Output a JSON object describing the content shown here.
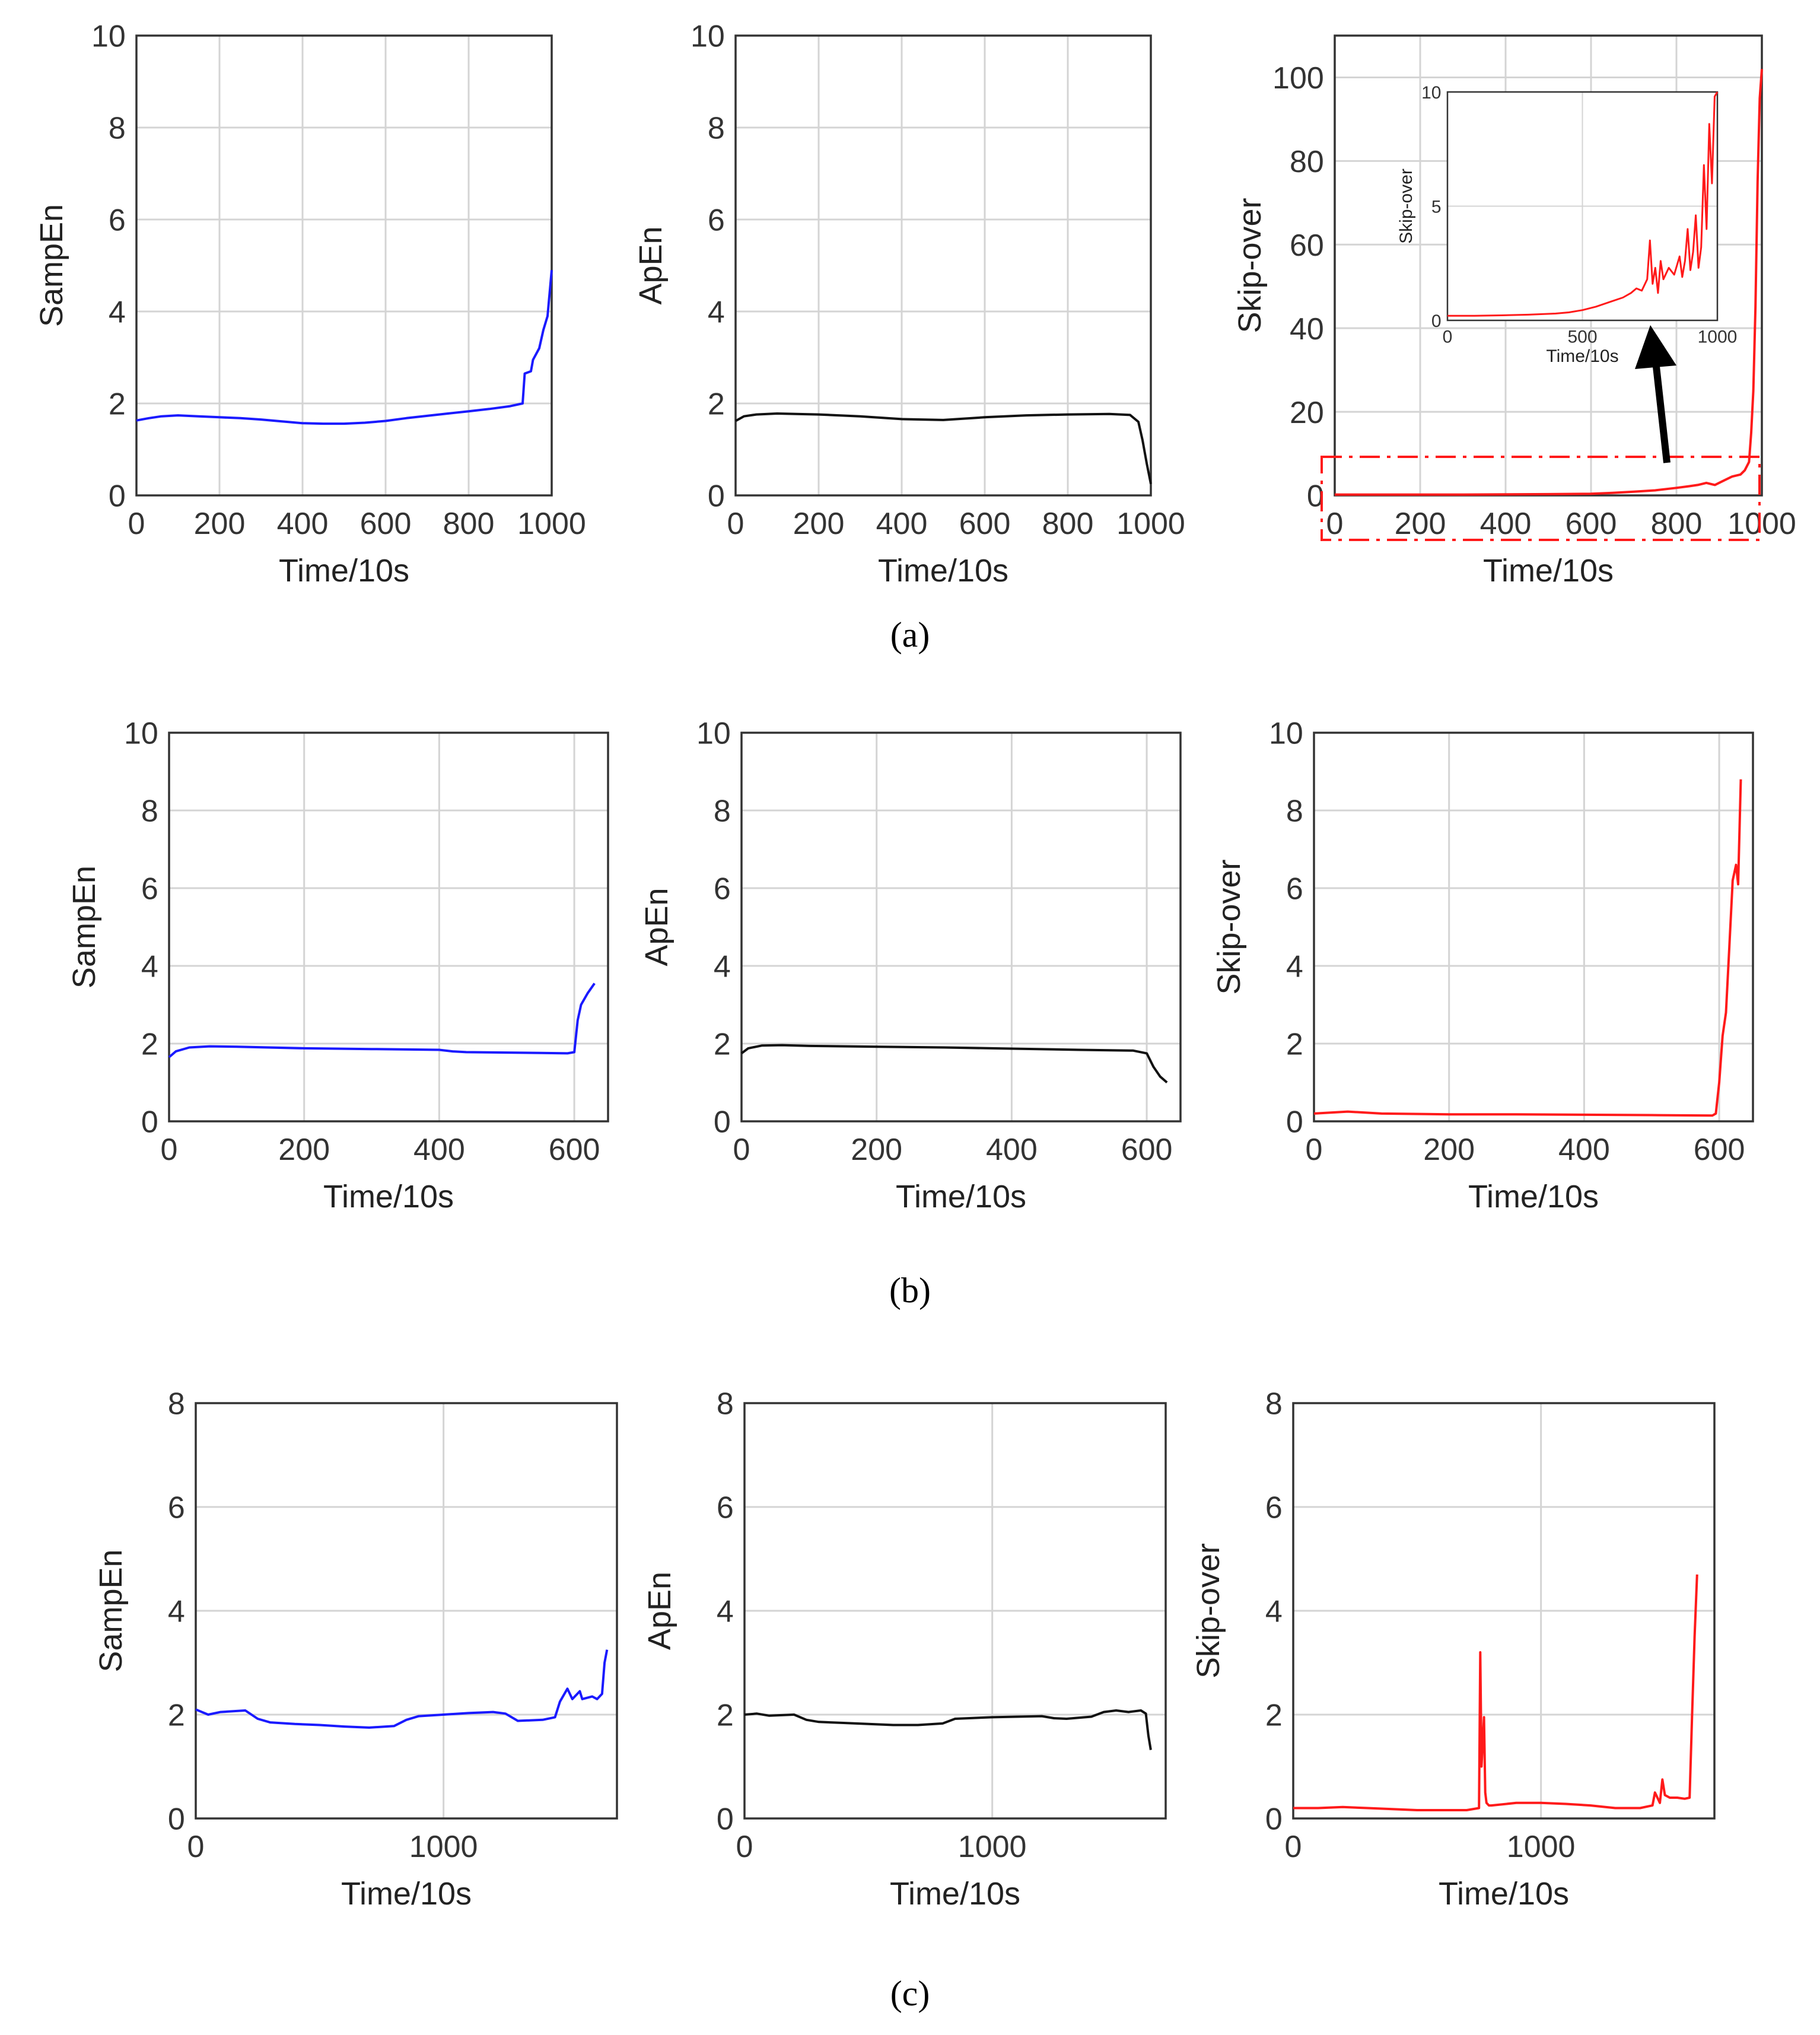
{
  "figure": {
    "panel_labels": [
      "(a)",
      "(b)",
      "(c)"
    ],
    "colors": {
      "sampen": "#1a1aff",
      "apen": "#111111",
      "skip": "#ff1a1a",
      "grid": "#d4d4d4",
      "axis": "#333333"
    }
  },
  "chart_data": [
    {
      "id": "a1",
      "type": "line",
      "title": "",
      "xlabel": "Time/10s",
      "ylabel": "SampEn",
      "xlim": [
        0,
        1000
      ],
      "ylim": [
        0,
        10
      ],
      "xticks": [
        "0",
        "200",
        "400",
        "600",
        "800",
        "1000"
      ],
      "yticks": [
        "0",
        "2",
        "4",
        "6",
        "8",
        "10"
      ],
      "series": [
        {
          "name": "SampEn",
          "color": "blue",
          "x": [
            0,
            30,
            60,
            100,
            150,
            200,
            250,
            300,
            350,
            400,
            450,
            500,
            550,
            600,
            650,
            700,
            750,
            800,
            850,
            900,
            930,
            935,
            950,
            955,
            970,
            980,
            990,
            995,
            1000
          ],
          "y": [
            1.63,
            1.68,
            1.72,
            1.74,
            1.72,
            1.7,
            1.68,
            1.65,
            1.61,
            1.57,
            1.56,
            1.56,
            1.58,
            1.62,
            1.68,
            1.73,
            1.78,
            1.83,
            1.88,
            1.94,
            2.0,
            2.65,
            2.7,
            2.95,
            3.2,
            3.6,
            3.9,
            4.4,
            4.9
          ]
        }
      ]
    },
    {
      "id": "a2",
      "type": "line",
      "title": "",
      "xlabel": "Time/10s",
      "ylabel": "ApEn",
      "xlim": [
        0,
        1000
      ],
      "ylim": [
        0,
        10
      ],
      "xticks": [
        "0",
        "200",
        "400",
        "600",
        "800",
        "1000"
      ],
      "yticks": [
        "0",
        "2",
        "4",
        "6",
        "8",
        "10"
      ],
      "series": [
        {
          "name": "ApEn",
          "color": "black",
          "x": [
            0,
            20,
            50,
            100,
            200,
            300,
            400,
            500,
            600,
            700,
            800,
            900,
            950,
            970,
            980,
            990,
            1000
          ],
          "y": [
            1.62,
            1.72,
            1.76,
            1.78,
            1.76,
            1.72,
            1.66,
            1.64,
            1.7,
            1.74,
            1.76,
            1.77,
            1.75,
            1.6,
            1.2,
            0.7,
            0.25
          ]
        }
      ]
    },
    {
      "id": "a3",
      "type": "line",
      "title": "",
      "xlabel": "Time/10s",
      "ylabel": "Skip-over",
      "xlim": [
        0,
        1000
      ],
      "ylim": [
        0,
        110
      ],
      "xticks": [
        "0",
        "200",
        "400",
        "600",
        "800",
        "1000"
      ],
      "yticks": [
        "0",
        "20",
        "40",
        "60",
        "80",
        "100"
      ],
      "series": [
        {
          "name": "Skip-over",
          "color": "red",
          "x": [
            0,
            100,
            200,
            300,
            400,
            500,
            600,
            650,
            700,
            750,
            800,
            830,
            850,
            870,
            890,
            910,
            930,
            950,
            960,
            970,
            975,
            980,
            985,
            990,
            995,
            1000
          ],
          "y": [
            0.2,
            0.2,
            0.2,
            0.2,
            0.25,
            0.3,
            0.4,
            0.6,
            0.9,
            1.2,
            1.8,
            2.2,
            2.5,
            3.0,
            2.5,
            3.5,
            4.5,
            5,
            6,
            8,
            15,
            25,
            45,
            75,
            95,
            102
          ]
        }
      ],
      "inset": {
        "xlabel": "Time/10s",
        "ylabel": "Skip-over",
        "xlim": [
          0,
          1000
        ],
        "ylim": [
          0,
          10
        ],
        "xticks": [
          "0",
          "500",
          "1000"
        ],
        "yticks": [
          "0",
          "5",
          "10"
        ],
        "x": [
          0,
          100,
          200,
          300,
          400,
          450,
          500,
          550,
          600,
          650,
          680,
          700,
          720,
          740,
          750,
          760,
          770,
          780,
          790,
          800,
          820,
          840,
          860,
          870,
          880,
          890,
          900,
          910,
          920,
          930,
          940,
          950,
          960,
          970,
          980,
          990,
          1000
        ],
        "y": [
          0.2,
          0.2,
          0.22,
          0.25,
          0.3,
          0.35,
          0.45,
          0.6,
          0.8,
          1.0,
          1.2,
          1.4,
          1.3,
          1.8,
          3.5,
          1.6,
          2.3,
          1.2,
          2.6,
          1.8,
          2.3,
          2.0,
          2.8,
          1.9,
          2.6,
          4.0,
          2.2,
          3.0,
          4.6,
          2.3,
          3.2,
          6.8,
          4.0,
          8.6,
          6.0,
          9.8,
          10
        ]
      },
      "annotation": "dashed box marks zoomed region; arrow points to inset"
    },
    {
      "id": "b1",
      "type": "line",
      "title": "",
      "xlabel": "Time/10s",
      "ylabel": "SampEn",
      "xlim": [
        0,
        650
      ],
      "ylim": [
        0,
        10
      ],
      "xticks": [
        "0",
        "200",
        "400",
        "600"
      ],
      "yticks": [
        "0",
        "2",
        "4",
        "6",
        "8",
        "10"
      ],
      "series": [
        {
          "name": "SampEn",
          "color": "blue",
          "x": [
            0,
            10,
            30,
            60,
            100,
            200,
            300,
            400,
            420,
            440,
            500,
            550,
            590,
            600,
            605,
            610,
            620,
            630
          ],
          "y": [
            1.65,
            1.8,
            1.9,
            1.93,
            1.92,
            1.88,
            1.86,
            1.84,
            1.8,
            1.78,
            1.77,
            1.76,
            1.75,
            1.78,
            2.6,
            3.0,
            3.3,
            3.55
          ]
        }
      ]
    },
    {
      "id": "b2",
      "type": "line",
      "title": "",
      "xlabel": "Time/10s",
      "ylabel": "ApEn",
      "xlim": [
        0,
        650
      ],
      "ylim": [
        0,
        10
      ],
      "xticks": [
        "0",
        "200",
        "400",
        "600"
      ],
      "yticks": [
        "0",
        "2",
        "4",
        "6",
        "8",
        "10"
      ],
      "series": [
        {
          "name": "ApEn",
          "color": "black",
          "x": [
            0,
            10,
            30,
            60,
            100,
            200,
            300,
            400,
            500,
            580,
            600,
            610,
            620,
            630
          ],
          "y": [
            1.75,
            1.88,
            1.95,
            1.96,
            1.94,
            1.92,
            1.9,
            1.87,
            1.84,
            1.82,
            1.75,
            1.4,
            1.15,
            1.0
          ]
        }
      ]
    },
    {
      "id": "b3",
      "type": "line",
      "title": "",
      "xlabel": "Time/10s",
      "ylabel": "Skip-over",
      "xlim": [
        0,
        650
      ],
      "ylim": [
        0,
        10
      ],
      "xticks": [
        "0",
        "200",
        "400",
        "600"
      ],
      "yticks": [
        "0",
        "2",
        "4",
        "6",
        "8",
        "10"
      ],
      "series": [
        {
          "name": "Skip-over",
          "color": "red",
          "x": [
            0,
            50,
            100,
            200,
            300,
            400,
            500,
            590,
            595,
            600,
            605,
            610,
            615,
            620,
            625,
            628,
            632
          ],
          "y": [
            0.2,
            0.25,
            0.2,
            0.18,
            0.18,
            0.17,
            0.16,
            0.15,
            0.2,
            1.0,
            2.2,
            2.8,
            4.5,
            6.2,
            6.6,
            6.1,
            8.8
          ]
        }
      ]
    },
    {
      "id": "c1",
      "type": "line",
      "title": "",
      "xlabel": "Time/10s",
      "ylabel": "SampEn",
      "xlim": [
        0,
        1700
      ],
      "ylim": [
        0,
        8
      ],
      "xticks": [
        "0",
        "1000"
      ],
      "yticks": [
        "0",
        "2",
        "4",
        "6",
        "8"
      ],
      "series": [
        {
          "name": "SampEn",
          "color": "blue",
          "x": [
            0,
            50,
            100,
            200,
            250,
            300,
            400,
            500,
            600,
            700,
            800,
            850,
            900,
            1000,
            1100,
            1200,
            1250,
            1300,
            1400,
            1450,
            1470,
            1500,
            1520,
            1550,
            1560,
            1600,
            1620,
            1640,
            1650,
            1660
          ],
          "y": [
            2.1,
            2.0,
            2.05,
            2.08,
            1.92,
            1.85,
            1.82,
            1.8,
            1.77,
            1.75,
            1.78,
            1.9,
            1.97,
            2.0,
            2.03,
            2.05,
            2.02,
            1.88,
            1.9,
            1.95,
            2.25,
            2.5,
            2.3,
            2.45,
            2.3,
            2.35,
            2.3,
            2.4,
            3.0,
            3.25
          ]
        }
      ]
    },
    {
      "id": "c2",
      "type": "line",
      "title": "",
      "xlabel": "Time/10s",
      "ylabel": "ApEn",
      "xlim": [
        0,
        1700
      ],
      "ylim": [
        0,
        8
      ],
      "xticks": [
        "0",
        "1000"
      ],
      "yticks": [
        "0",
        "2",
        "4",
        "6",
        "8"
      ],
      "series": [
        {
          "name": "ApEn",
          "color": "black",
          "x": [
            0,
            50,
            100,
            200,
            250,
            300,
            400,
            500,
            600,
            700,
            800,
            850,
            1000,
            1200,
            1250,
            1300,
            1400,
            1450,
            1500,
            1550,
            1600,
            1620,
            1630,
            1640
          ],
          "y": [
            2.0,
            2.02,
            1.98,
            2.0,
            1.9,
            1.86,
            1.84,
            1.82,
            1.8,
            1.8,
            1.83,
            1.92,
            1.95,
            1.97,
            1.93,
            1.92,
            1.96,
            2.05,
            2.08,
            2.05,
            2.08,
            2.02,
            1.6,
            1.32
          ]
        }
      ]
    },
    {
      "id": "c3",
      "type": "line",
      "title": "",
      "xlabel": "Time/10s",
      "ylabel": "Skip-over",
      "xlim": [
        0,
        1700
      ],
      "ylim": [
        0,
        8
      ],
      "xticks": [
        "0",
        "1000"
      ],
      "yticks": [
        "0",
        "2",
        "4",
        "6",
        "8"
      ],
      "series": [
        {
          "name": "Skip-over",
          "color": "red",
          "x": [
            0,
            100,
            200,
            300,
            400,
            500,
            600,
            700,
            750,
            755,
            760,
            770,
            775,
            780,
            790,
            800,
            900,
            1000,
            1100,
            1200,
            1300,
            1400,
            1450,
            1460,
            1480,
            1490,
            1500,
            1520,
            1550,
            1580,
            1600,
            1610,
            1620,
            1630
          ],
          "y": [
            0.2,
            0.2,
            0.22,
            0.2,
            0.18,
            0.16,
            0.16,
            0.16,
            0.2,
            3.2,
            1.0,
            1.95,
            0.5,
            0.3,
            0.25,
            0.25,
            0.3,
            0.3,
            0.28,
            0.25,
            0.2,
            0.2,
            0.25,
            0.5,
            0.3,
            0.75,
            0.45,
            0.4,
            0.4,
            0.38,
            0.4,
            2.0,
            3.5,
            4.7
          ]
        }
      ]
    }
  ]
}
